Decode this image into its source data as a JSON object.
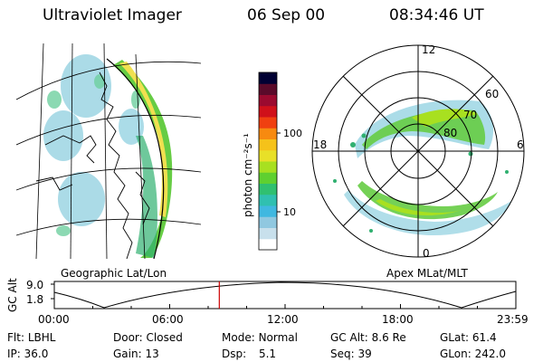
{
  "header": {
    "instrument": "Ultraviolet Imager",
    "date": "06 Sep 00",
    "time": "08:34:46 UT"
  },
  "left_panel": {
    "label": "Geographic Lat/Lon"
  },
  "colorbar": {
    "label": "photon cm⁻²s⁻¹",
    "ticks": [
      "100",
      "10"
    ],
    "colors": [
      "#000033",
      "#5a0a2a",
      "#9b0a2f",
      "#d0101a",
      "#f04010",
      "#f78a10",
      "#f5c21a",
      "#e8e028",
      "#a8e020",
      "#5fd030",
      "#30c070",
      "#30c0b0",
      "#40b8e0",
      "#90c8e0",
      "#c8e0ec",
      "#ffffff"
    ]
  },
  "polar_panel": {
    "label": "Apex MLat/MLT",
    "mlt_labels": {
      "top": "12",
      "left": "18",
      "right": "6",
      "bottom": "0"
    },
    "lat_labels": [
      "60",
      "70",
      "80"
    ]
  },
  "timeline": {
    "ylabel": "GC Alt",
    "yticks": [
      "9.0",
      "1.8"
    ],
    "xticks": [
      "00:00",
      "06:00",
      "12:00",
      "18:00",
      "23:59"
    ],
    "marker_hours": 8.58,
    "marker_color": "#cc0000"
  },
  "status": {
    "row1": [
      {
        "key": "Flt:",
        "value": "LBHL"
      },
      {
        "key": "Door:",
        "value": "Closed"
      },
      {
        "key": "Mode:",
        "value": "Normal"
      },
      {
        "key": "GC Alt:",
        "value": "8.6 Re"
      },
      {
        "key": "GLat:",
        "value": "61.4"
      }
    ],
    "row2": [
      {
        "key": "IP:",
        "value": "36.0"
      },
      {
        "key": "Gain:",
        "value": "13"
      },
      {
        "key": "Dsp:",
        "value": "5.1"
      },
      {
        "key": "Seq:",
        "value": "39"
      },
      {
        "key": "GLon:",
        "value": "242.0"
      }
    ]
  }
}
